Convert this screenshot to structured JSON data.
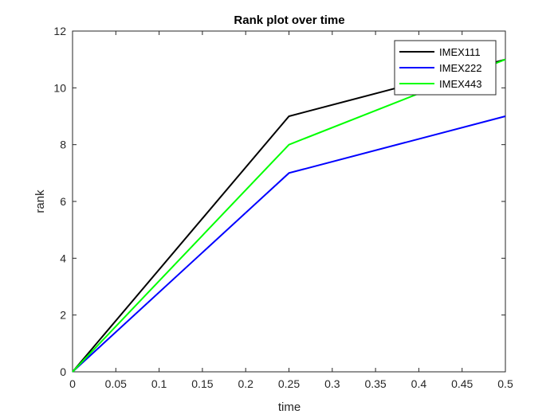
{
  "chart_data": {
    "type": "line",
    "title": "Rank plot over time",
    "xlabel": "time",
    "ylabel": "rank",
    "xlim": [
      0,
      0.5
    ],
    "ylim": [
      0,
      12
    ],
    "xticks": [
      "0",
      "0.05",
      "0.1",
      "0.15",
      "0.2",
      "0.25",
      "0.3",
      "0.35",
      "0.4",
      "0.45",
      "0.5"
    ],
    "yticks": [
      "0",
      "2",
      "4",
      "6",
      "8",
      "10",
      "12"
    ],
    "grid": false,
    "legend_position": "top-right",
    "x": [
      0,
      0.25,
      0.5
    ],
    "series": [
      {
        "name": "IMEX111",
        "color": "#000000",
        "values": [
          0,
          9,
          11
        ]
      },
      {
        "name": "IMEX222",
        "color": "#0000ff",
        "values": [
          0,
          7,
          9
        ]
      },
      {
        "name": "IMEX443",
        "color": "#00ff00",
        "values": [
          0,
          8,
          11
        ]
      }
    ]
  }
}
